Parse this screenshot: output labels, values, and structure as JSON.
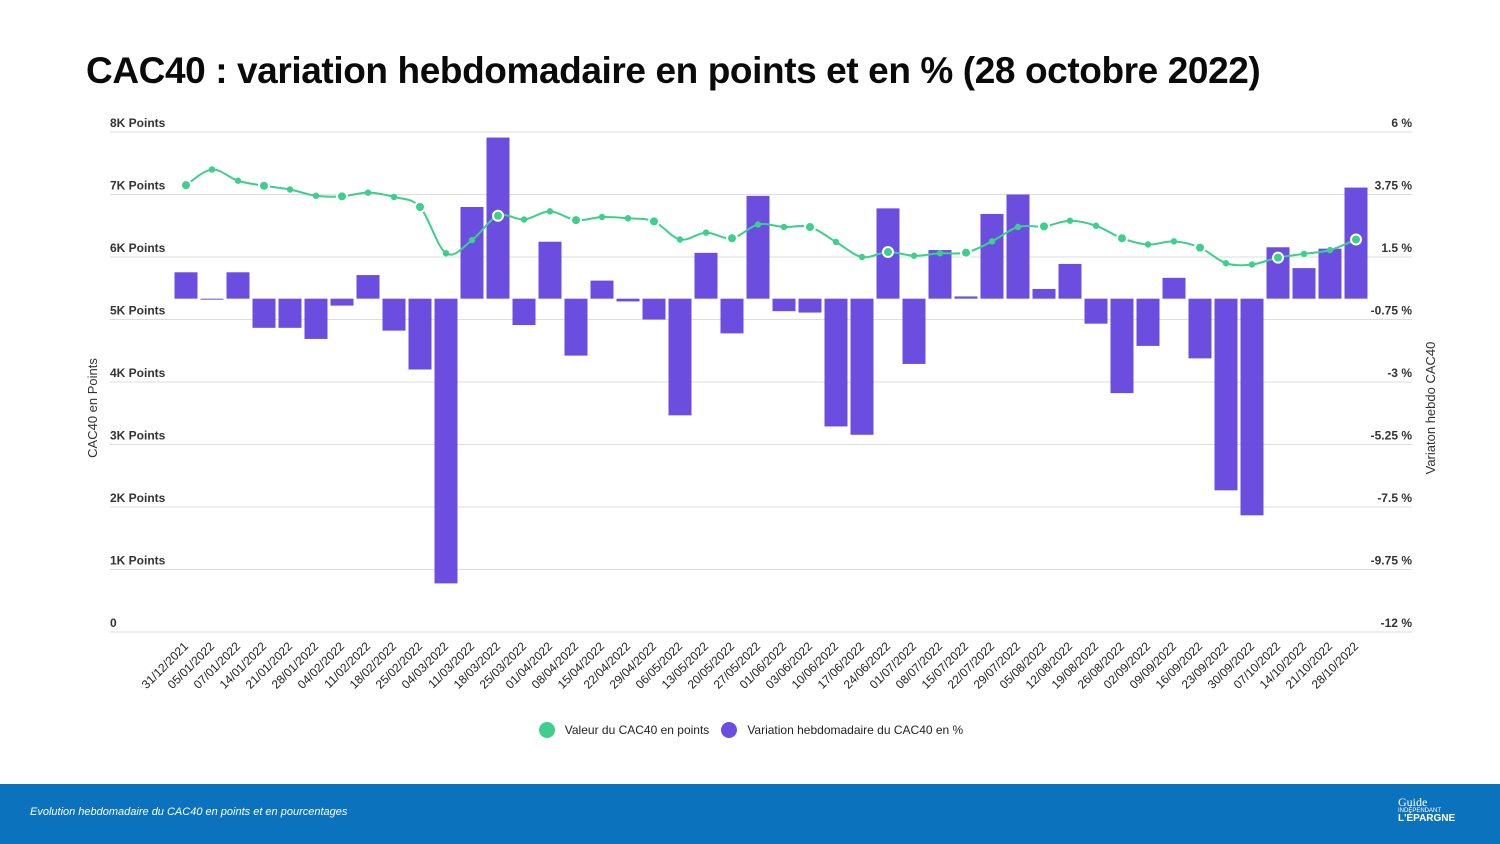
{
  "title": "CAC40 : variation hebdomadaire en points et en % (28 octobre 2022)",
  "colors": {
    "line": "#3ecf8e",
    "bars": "#6b4ee0",
    "grid": "#dddddd",
    "footer": "#0b72bd"
  },
  "legend": {
    "line_label": "Valeur du CAC40 en points",
    "bar_label": "Variation hebdomadaire du CAC40 en %"
  },
  "footer": {
    "caption": "Evolution hebdomadaire du CAC40 en points et en pourcentages",
    "logo_line1": "Guide",
    "logo_line2": "INDÉPENDANT",
    "logo_line3": "L'ÉPARGNE"
  },
  "chart_data": {
    "type": "bar",
    "title": "CAC40 : variation hebdomadaire en points et en % (28 octobre 2022)",
    "ylabel_left": "CAC40 en Points",
    "ylabel_right": "Variaton hebdo CAC40",
    "ylim_left": [
      0,
      8000
    ],
    "ylim_right": [
      -12,
      6
    ],
    "left_ticks": [
      "0",
      "1K Points",
      "2K Points",
      "3K Points",
      "4K Points",
      "5K Points",
      "6K Points",
      "7K Points",
      "8K Points"
    ],
    "right_ticks": [
      "-12 %",
      "-9.75 %",
      "-7.5 %",
      "-5.25 %",
      "-3 %",
      "-0.75 %",
      "1.5 %",
      "3.75 %",
      "6 %"
    ],
    "grid": true,
    "legend_position": "bottom",
    "categories": [
      "31/12/2021",
      "05/01/2022",
      "07/01/2022",
      "14/01/2022",
      "21/01/2022",
      "28/01/2022",
      "04/02/2022",
      "11/02/2022",
      "18/02/2022",
      "25/02/2022",
      "04/03/2022",
      "11/03/2022",
      "18/03/2022",
      "25/03/2022",
      "01/04/2022",
      "08/04/2022",
      "15/04/2022",
      "22/04/2022",
      "29/04/2022",
      "06/05/2022",
      "13/05/2022",
      "20/05/2022",
      "27/05/2022",
      "01/06/2022",
      "03/06/2022",
      "10/06/2022",
      "17/06/2022",
      "24/06/2022",
      "01/07/2022",
      "08/07/2022",
      "15/07/2022",
      "22/07/2022",
      "29/07/2022",
      "05/08/2022",
      "12/08/2022",
      "19/08/2022",
      "26/08/2022",
      "02/09/2022",
      "09/09/2022",
      "16/09/2022",
      "23/09/2022",
      "30/09/2022",
      "07/10/2022",
      "14/10/2022",
      "21/10/2022",
      "28/10/2022"
    ],
    "series": [
      {
        "name": "Valeur du CAC40 en points",
        "type": "line",
        "axis": "left",
        "values": [
          7150,
          7400,
          7220,
          7140,
          7080,
          6980,
          6970,
          7030,
          6960,
          6800,
          6060,
          6270,
          6660,
          6600,
          6730,
          6590,
          6640,
          6620,
          6570,
          6280,
          6390,
          6300,
          6520,
          6480,
          6480,
          6240,
          6000,
          6080,
          6020,
          6060,
          6070,
          6250,
          6480,
          6490,
          6580,
          6500,
          6300,
          6200,
          6250,
          6150,
          5900,
          5880,
          5990,
          6050,
          6110,
          6280
        ]
      },
      {
        "name": "Variation hebdomadaire du CAC40 en %",
        "type": "bar",
        "axis": "right",
        "values": [
          0.95,
          0,
          0.95,
          -1.05,
          -1.05,
          -1.45,
          -0.25,
          0.85,
          -1.15,
          -2.55,
          -10.25,
          3.3,
          5.8,
          -0.95,
          2.05,
          -2.05,
          0.65,
          -0.1,
          -0.75,
          -4.2,
          1.65,
          -1.25,
          3.7,
          -0.45,
          -0.5,
          -4.6,
          -4.9,
          3.25,
          -2.35,
          1.75,
          0.08,
          3.05,
          3.75,
          0.35,
          1.25,
          -0.9,
          -3.4,
          -1.7,
          0.75,
          -2.15,
          -6.9,
          -7.8,
          1.85,
          1.1,
          1.8,
          4.0
        ]
      }
    ]
  }
}
